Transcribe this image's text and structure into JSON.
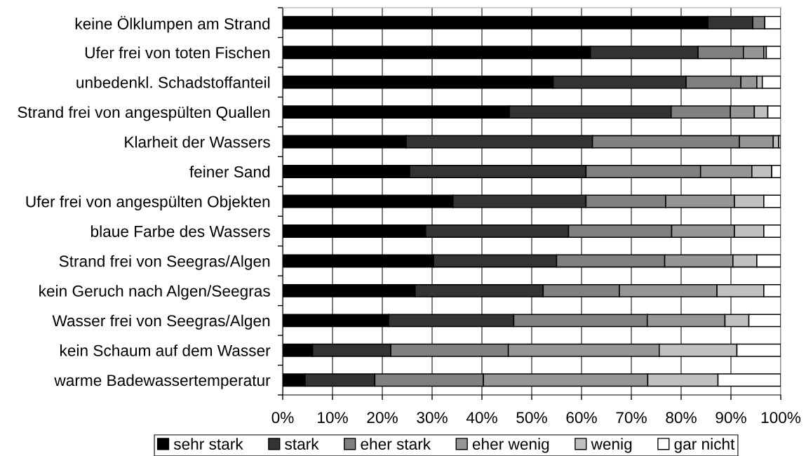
{
  "chart_data": {
    "type": "bar",
    "orientation": "horizontal",
    "stacked": true,
    "categories": [
      "keine Ölklumpen am Strand",
      "Ufer frei von toten Fischen",
      "unbedenkl. Schadstoffanteil",
      "Strand frei von angespülten Quallen",
      "Klarheit der Wassers",
      "feiner Sand",
      "Ufer frei von angespülten Objekten",
      "blaue Farbe des Wassers",
      "Strand frei von Seegras/Algen",
      "kein Geruch nach Algen/Seegras",
      "Wasser frei von Seegras/Algen",
      "kein Schaum auf dem Wasser",
      "warme Badewassertemperatur"
    ],
    "series": [
      {
        "name": "sehr stark",
        "color": "#000000",
        "values": [
          85.4,
          61.8,
          54.3,
          45.5,
          24.8,
          25.5,
          34.2,
          28.7,
          30.3,
          26.6,
          21.3,
          6.0,
          4.5
        ]
      },
      {
        "name": "stark",
        "color": "#333333",
        "values": [
          9.0,
          21.6,
          26.7,
          32.5,
          37.4,
          35.4,
          26.7,
          28.7,
          24.7,
          25.7,
          25.1,
          15.7,
          14.0
        ]
      },
      {
        "name": "eher stark",
        "color": "#808080",
        "values": [
          2.4,
          9.1,
          11.0,
          11.9,
          29.5,
          23.0,
          16.0,
          20.7,
          21.7,
          15.3,
          26.8,
          23.6,
          21.8
        ]
      },
      {
        "name": "eher wenig",
        "color": "#969696",
        "values": [
          null,
          4.1,
          3.2,
          4.8,
          6.8,
          10.3,
          13.8,
          12.6,
          13.7,
          19.6,
          15.6,
          30.3,
          33.0
        ]
      },
      {
        "name": "wenig",
        "color": "#c0c0c0",
        "values": [
          null,
          0.5,
          1.1,
          2.7,
          1.1,
          4.0,
          5.9,
          5.9,
          4.8,
          9.4,
          4.8,
          15.6,
          14.1
        ]
      },
      {
        "name": "gar nicht",
        "color": "#ffffff",
        "values": [
          3.2,
          2.9,
          3.7,
          2.6,
          0.4,
          1.8,
          3.4,
          3.4,
          4.8,
          3.4,
          6.4,
          8.8,
          12.6
        ]
      }
    ],
    "xlim": [
      0,
      100
    ],
    "xticks": [
      {
        "value": 0,
        "label": "0%"
      },
      {
        "value": 10,
        "label": "10%"
      },
      {
        "value": 20,
        "label": "20%"
      },
      {
        "value": 30,
        "label": "30%"
      },
      {
        "value": 40,
        "label": "40%"
      },
      {
        "value": 50,
        "label": "50%"
      },
      {
        "value": 60,
        "label": "60%"
      },
      {
        "value": 70,
        "label": "70%"
      },
      {
        "value": 80,
        "label": "80%"
      },
      {
        "value": 90,
        "label": "90%"
      },
      {
        "value": 100,
        "label": "100%"
      }
    ],
    "grid": "x",
    "legend": "bottom"
  }
}
